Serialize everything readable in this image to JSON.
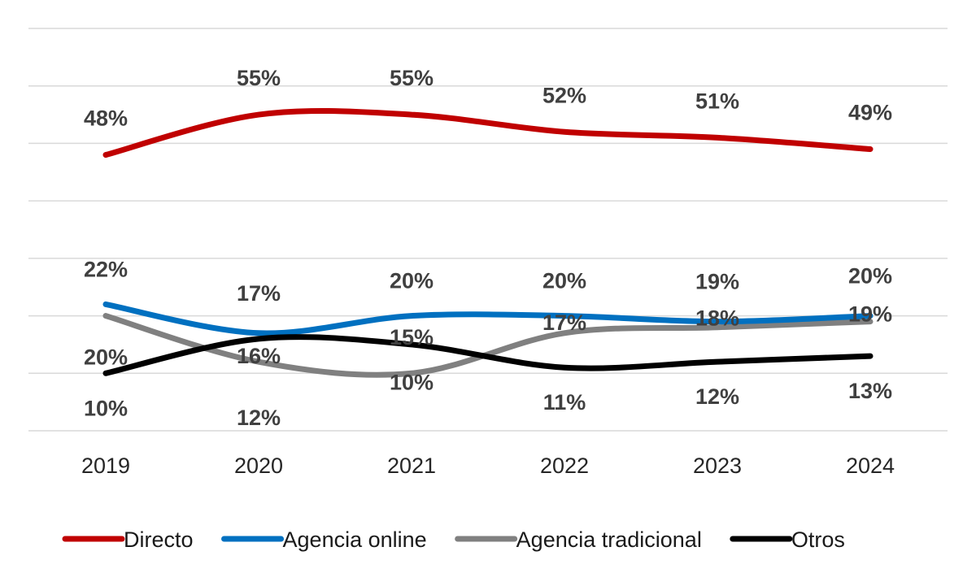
{
  "chart_data": {
    "type": "line",
    "title": "",
    "xlabel": "",
    "ylabel": "",
    "categories": [
      "2019",
      "2020",
      "2021",
      "2022",
      "2023",
      "2024"
    ],
    "ylim": [
      0,
      70
    ],
    "grid": true,
    "legend": "bottom",
    "series": [
      {
        "name": "Directo",
        "color": "#c00000",
        "values": [
          48,
          55,
          55,
          52,
          51,
          49
        ],
        "labels": [
          "48%",
          "55%",
          "55%",
          "52%",
          "51%",
          "49%"
        ]
      },
      {
        "name": "Agencia online",
        "color": "#0070c0",
        "values": [
          22,
          17,
          20,
          20,
          19,
          20
        ],
        "labels": [
          "22%",
          "17%",
          "20%",
          "20%",
          "19%",
          "20%"
        ]
      },
      {
        "name": "Agencia tradicional",
        "color": "#808080",
        "values": [
          20,
          12,
          10,
          17,
          18,
          19
        ],
        "labels": [
          "20%",
          "12%",
          "10%",
          "17%",
          "18%",
          "19%"
        ]
      },
      {
        "name": "Otros",
        "color": "#000000",
        "values": [
          10,
          16,
          15,
          11,
          12,
          13
        ],
        "labels": [
          "10%",
          "16%",
          "15%",
          "11%",
          "12%",
          "13%"
        ]
      }
    ]
  }
}
